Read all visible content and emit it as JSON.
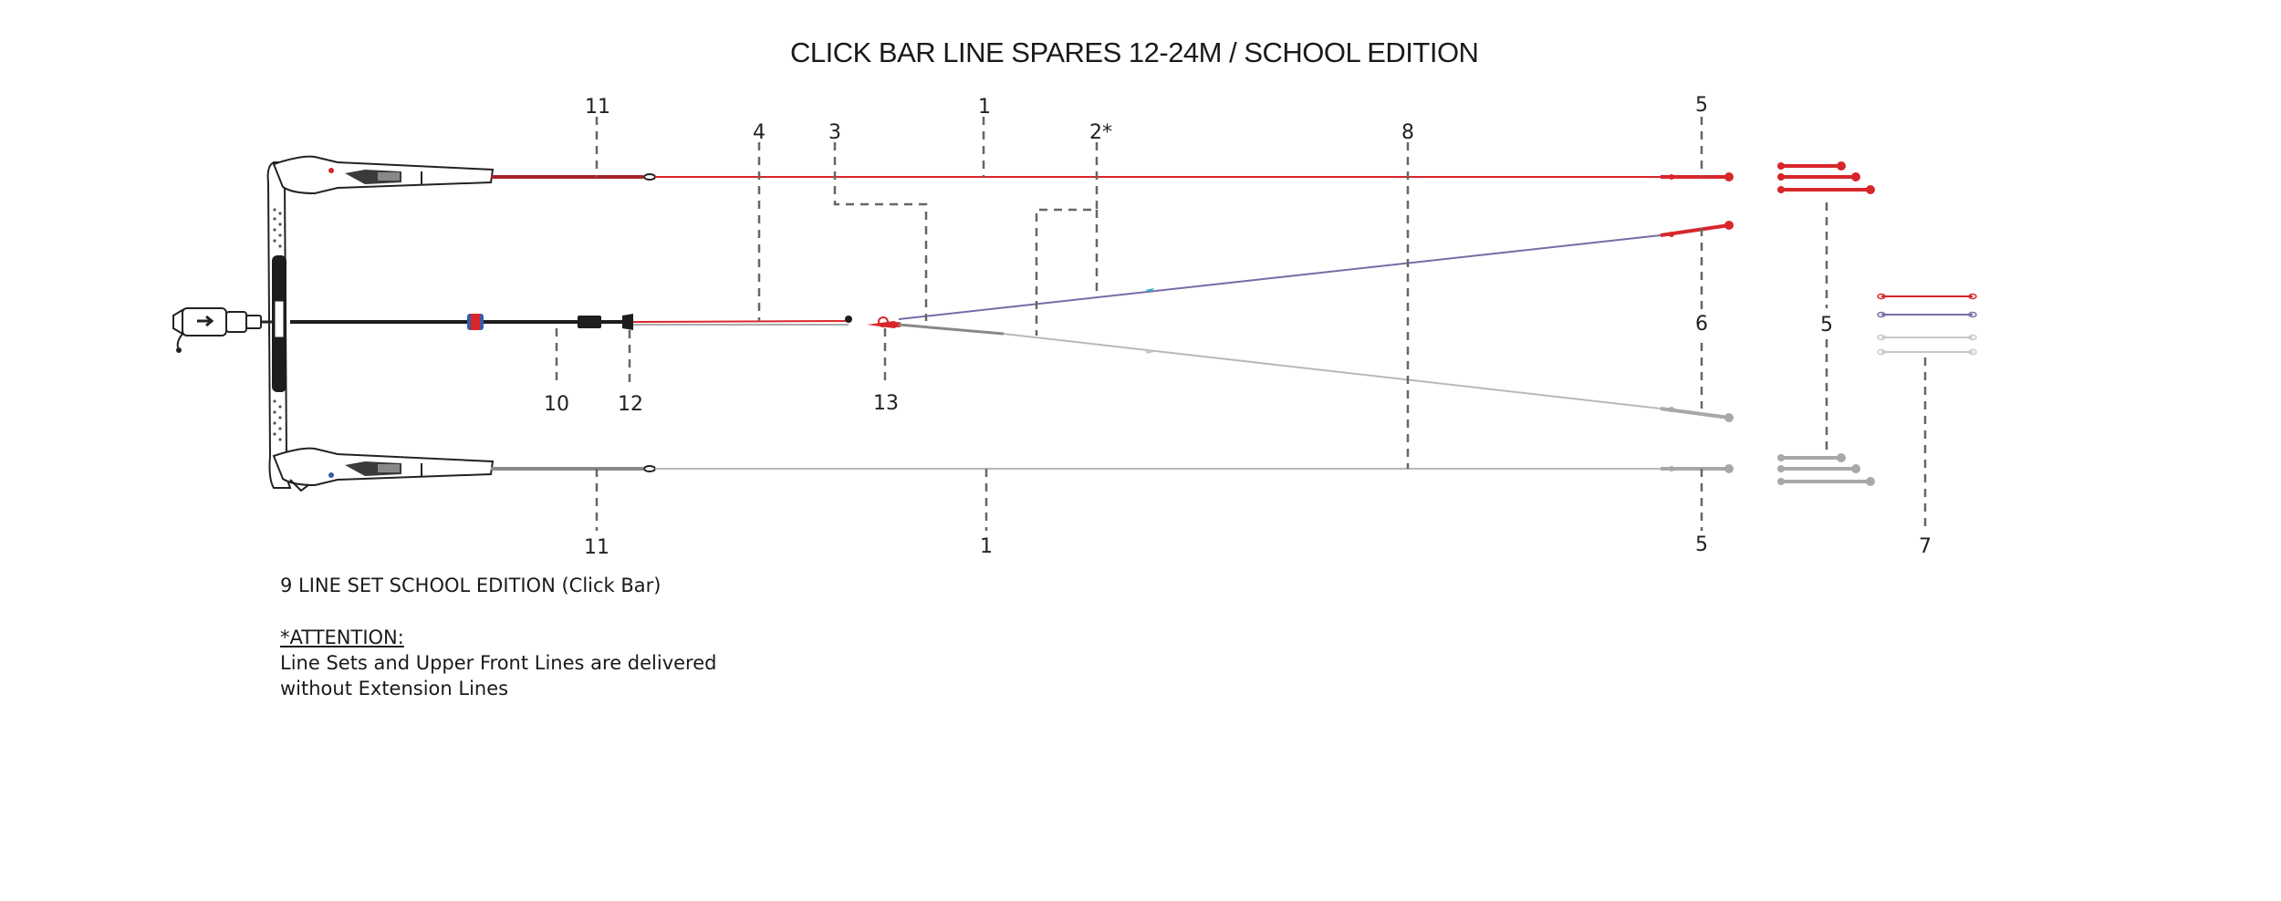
{
  "title": "CLICK BAR LINE SPARES 12-24M / SCHOOL EDITION",
  "callouts": {
    "c11_top": "11",
    "c4": "4",
    "c3": "3",
    "c1_top": "1",
    "c2": "2*",
    "c8": "8",
    "c5_top": "5",
    "c6": "6",
    "c5_mid": "5",
    "c10": "10",
    "c12": "12",
    "c13": "13",
    "c11_bottom": "11",
    "c1_bottom": "1",
    "c5_bottom": "5",
    "c7": "7"
  },
  "notes": {
    "lineset": "9  LINE SET SCHOOL EDITION (Click Bar)",
    "attention_heading": "*ATTENTION:",
    "attention_line1": "Line Sets and Upper Front Lines are delivered",
    "attention_line2": "without Extension Lines"
  },
  "colors": {
    "red_line": "#d8262b",
    "grey_line": "#b9b9b9",
    "purple_line": "#7a6aa6",
    "bar": "#1d1d1f"
  }
}
